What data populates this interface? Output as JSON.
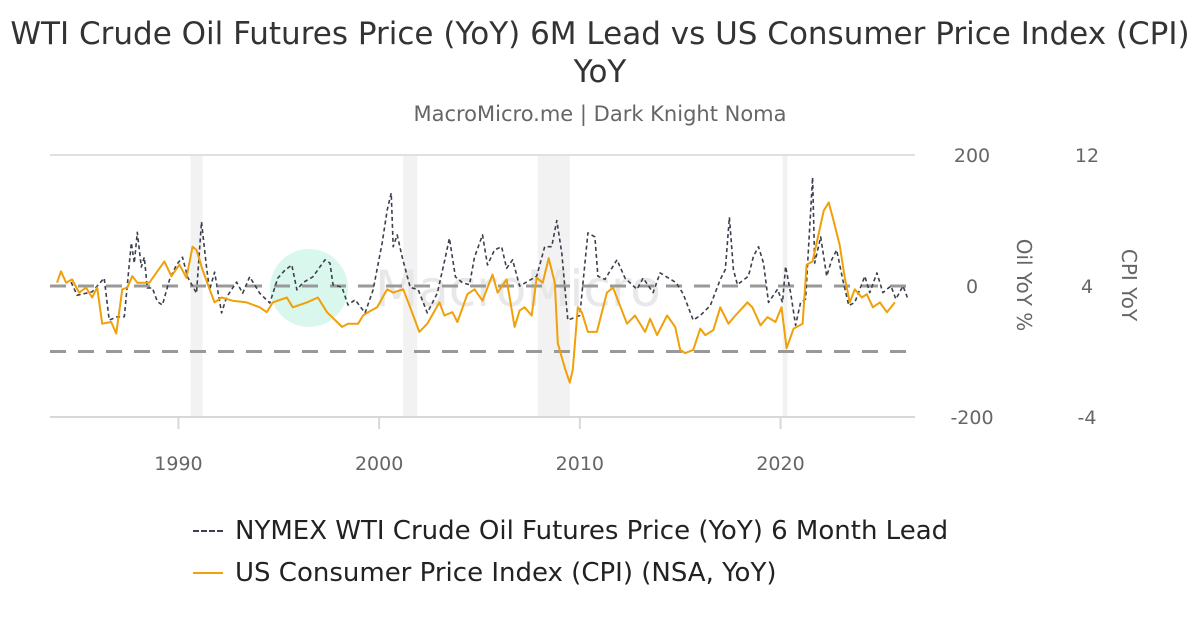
{
  "chart_data": {
    "type": "line",
    "title": "WTI Crude Oil Futures Price (YoY) 6M Lead vs US Consumer Price Index (CPI) YoY",
    "subtitle": "MacroMicro.me | Dark Knight Noma",
    "watermark": "MacroMicro",
    "xlim": [
      1983.6,
      2026.7
    ],
    "x_ticks": [
      "1990",
      "2000",
      "2010",
      "2020"
    ],
    "y_left": {
      "label": "Oil YoY %",
      "range": [
        -200,
        200
      ],
      "ticks": [
        "200",
        "0",
        "-200"
      ]
    },
    "y_right": {
      "label": "CPI YoY",
      "range": [
        -4,
        12
      ],
      "ticks": [
        "12",
        "4",
        "-4"
      ]
    },
    "reference_lines": [
      {
        "axis": "left",
        "value": 0
      },
      {
        "axis": "right",
        "value": 0
      }
    ],
    "recession_bands": [
      [
        1990.6,
        1991.2
      ],
      [
        2001.2,
        2001.9
      ],
      [
        2007.9,
        2009.5
      ],
      [
        2020.1,
        2020.35
      ]
    ],
    "legend_position": "bottom",
    "series": [
      {
        "name": "NYMEX WTI Crude Oil Futures Price (YoY) 6 Month Lead",
        "axis": "left",
        "color": "#3b3f4e",
        "style": "dashed",
        "points": [
          [
            1984.65,
            6
          ],
          [
            1984.95,
            -14
          ],
          [
            1985.7,
            -9
          ],
          [
            1986.3,
            12
          ],
          [
            1986.55,
            -52
          ],
          [
            1986.95,
            -47
          ],
          [
            1987.3,
            -47
          ],
          [
            1987.65,
            66
          ],
          [
            1987.8,
            35
          ],
          [
            1987.95,
            82
          ],
          [
            1988.15,
            29
          ],
          [
            1988.3,
            44
          ],
          [
            1988.45,
            -3
          ],
          [
            1988.7,
            -3
          ],
          [
            1988.95,
            -24
          ],
          [
            1989.2,
            -29
          ],
          [
            1989.55,
            9
          ],
          [
            1989.9,
            32
          ],
          [
            1990.2,
            44
          ],
          [
            1990.45,
            14
          ],
          [
            1990.9,
            -11
          ],
          [
            1991.15,
            98
          ],
          [
            1991.4,
            29
          ],
          [
            1991.55,
            -6
          ],
          [
            1991.8,
            21
          ],
          [
            1992.15,
            -41
          ],
          [
            1992.4,
            -17
          ],
          [
            1992.9,
            6
          ],
          [
            1993.2,
            -11
          ],
          [
            1993.55,
            14
          ],
          [
            1994.05,
            -11
          ],
          [
            1994.55,
            -26
          ],
          [
            1994.95,
            12
          ],
          [
            1995.3,
            24
          ],
          [
            1995.65,
            32
          ],
          [
            1995.9,
            -6
          ],
          [
            1996.2,
            5
          ],
          [
            1996.7,
            14
          ],
          [
            1997.3,
            40
          ],
          [
            1997.55,
            35
          ],
          [
            1997.7,
            2
          ],
          [
            1998.15,
            -2
          ],
          [
            1998.45,
            -29
          ],
          [
            1998.8,
            -21
          ],
          [
            1999.3,
            -41
          ],
          [
            1999.7,
            -6
          ],
          [
            2000.15,
            66
          ],
          [
            2000.4,
            116
          ],
          [
            2000.6,
            142
          ],
          [
            2000.7,
            60
          ],
          [
            2000.9,
            78
          ],
          [
            2001.15,
            44
          ],
          [
            2001.55,
            -2
          ],
          [
            2001.95,
            -6
          ],
          [
            2002.4,
            -41
          ],
          [
            2002.9,
            -11
          ],
          [
            2003.3,
            44
          ],
          [
            2003.5,
            73
          ],
          [
            2003.8,
            14
          ],
          [
            2004.15,
            5
          ],
          [
            2004.5,
            2
          ],
          [
            2004.75,
            44
          ],
          [
            2005.15,
            78
          ],
          [
            2005.4,
            32
          ],
          [
            2005.75,
            55
          ],
          [
            2006.1,
            60
          ],
          [
            2006.35,
            27
          ],
          [
            2006.65,
            40
          ],
          [
            2007.0,
            0
          ],
          [
            2007.85,
            15
          ],
          [
            2008.25,
            60
          ],
          [
            2008.6,
            60
          ],
          [
            2008.85,
            100
          ],
          [
            2009.1,
            50
          ],
          [
            2009.4,
            -52
          ],
          [
            2010.0,
            -45
          ],
          [
            2010.4,
            81
          ],
          [
            2010.75,
            75
          ],
          [
            2010.9,
            15
          ],
          [
            2011.25,
            10
          ],
          [
            2011.85,
            40
          ],
          [
            2012.25,
            12
          ],
          [
            2012.85,
            -5
          ],
          [
            2013.15,
            12
          ],
          [
            2013.65,
            -10
          ],
          [
            2014.0,
            20
          ],
          [
            2014.8,
            5
          ],
          [
            2015.15,
            -12
          ],
          [
            2015.65,
            -52
          ],
          [
            2016.0,
            -45
          ],
          [
            2016.5,
            -30
          ],
          [
            2017.0,
            10
          ],
          [
            2017.25,
            25
          ],
          [
            2017.45,
            105
          ],
          [
            2017.65,
            25
          ],
          [
            2017.85,
            2
          ],
          [
            2018.4,
            15
          ],
          [
            2018.65,
            45
          ],
          [
            2018.9,
            60
          ],
          [
            2019.15,
            35
          ],
          [
            2019.4,
            -25
          ],
          [
            2019.85,
            -5
          ],
          [
            2020.1,
            -25
          ],
          [
            2020.25,
            30
          ],
          [
            2020.5,
            -10
          ],
          [
            2020.75,
            -60
          ],
          [
            2021.0,
            -25
          ],
          [
            2021.25,
            -20
          ],
          [
            2021.4,
            60
          ],
          [
            2021.6,
            166
          ],
          [
            2021.7,
            35
          ],
          [
            2022.0,
            75
          ],
          [
            2022.3,
            15
          ],
          [
            2022.55,
            40
          ],
          [
            2022.8,
            55
          ],
          [
            2023.1,
            10
          ],
          [
            2023.4,
            -30
          ],
          [
            2023.7,
            -25
          ],
          [
            2024.2,
            15
          ],
          [
            2024.45,
            -10
          ],
          [
            2024.8,
            20
          ],
          [
            2025.1,
            -10
          ],
          [
            2025.5,
            0
          ],
          [
            2025.75,
            -20
          ],
          [
            2026.1,
            0
          ],
          [
            2026.35,
            -20
          ]
        ]
      },
      {
        "name": "US Consumer Price Index (CPI) (NSA, YoY)",
        "axis": "right",
        "color": "#f0a00a",
        "style": "solid",
        "points": [
          [
            1983.95,
            4.2
          ],
          [
            1984.15,
            4.9
          ],
          [
            1984.4,
            4.2
          ],
          [
            1984.7,
            4.4
          ],
          [
            1985.05,
            3.6
          ],
          [
            1985.4,
            3.9
          ],
          [
            1985.7,
            3.3
          ],
          [
            1985.95,
            3.9
          ],
          [
            1986.2,
            1.7
          ],
          [
            1986.65,
            1.8
          ],
          [
            1986.9,
            1.1
          ],
          [
            1987.2,
            3.8
          ],
          [
            1987.45,
            3.9
          ],
          [
            1987.7,
            4.6
          ],
          [
            1987.95,
            4.2
          ],
          [
            1988.55,
            4.2
          ],
          [
            1989.3,
            5.5
          ],
          [
            1989.65,
            4.6
          ],
          [
            1990.05,
            5.3
          ],
          [
            1990.4,
            4.5
          ],
          [
            1990.7,
            6.4
          ],
          [
            1990.9,
            6.2
          ],
          [
            1991.2,
            5.0
          ],
          [
            1991.55,
            3.8
          ],
          [
            1991.8,
            3.0
          ],
          [
            1992.15,
            3.3
          ],
          [
            1992.7,
            3.1
          ],
          [
            1993.4,
            3.0
          ],
          [
            1994.05,
            2.7
          ],
          [
            1994.4,
            2.4
          ],
          [
            1994.7,
            3.0
          ],
          [
            1995.4,
            3.3
          ],
          [
            1995.7,
            2.7
          ],
          [
            1996.4,
            3.0
          ],
          [
            1996.95,
            3.3
          ],
          [
            1997.4,
            2.4
          ],
          [
            1998.15,
            1.5
          ],
          [
            1998.45,
            1.7
          ],
          [
            1998.95,
            1.7
          ],
          [
            1999.2,
            2.2
          ],
          [
            1999.45,
            2.4
          ],
          [
            1999.9,
            2.7
          ],
          [
            2000.4,
            3.8
          ],
          [
            2000.7,
            3.6
          ],
          [
            2001.2,
            3.8
          ],
          [
            2001.55,
            2.7
          ],
          [
            2002.0,
            1.2
          ],
          [
            2002.4,
            1.7
          ],
          [
            2003.0,
            3.0
          ],
          [
            2003.25,
            2.2
          ],
          [
            2003.65,
            2.4
          ],
          [
            2003.9,
            1.8
          ],
          [
            2004.4,
            3.5
          ],
          [
            2004.75,
            3.8
          ],
          [
            2005.15,
            3.1
          ],
          [
            2005.65,
            4.7
          ],
          [
            2005.9,
            3.6
          ],
          [
            2006.35,
            4.4
          ],
          [
            2006.75,
            1.5
          ],
          [
            2007.0,
            2.5
          ],
          [
            2007.25,
            2.7
          ],
          [
            2007.6,
            2.2
          ],
          [
            2007.85,
            4.5
          ],
          [
            2008.15,
            4.2
          ],
          [
            2008.45,
            5.7
          ],
          [
            2008.75,
            4.2
          ],
          [
            2008.9,
            0.5
          ],
          [
            2009.25,
            -1.0
          ],
          [
            2009.5,
            -1.9
          ],
          [
            2009.65,
            -1.1
          ],
          [
            2009.9,
            2.7
          ],
          [
            2010.1,
            2.4
          ],
          [
            2010.4,
            1.2
          ],
          [
            2010.85,
            1.2
          ],
          [
            2011.35,
            3.6
          ],
          [
            2011.65,
            3.9
          ],
          [
            2012.35,
            1.7
          ],
          [
            2012.75,
            2.2
          ],
          [
            2013.25,
            1.2
          ],
          [
            2013.5,
            2.0
          ],
          [
            2013.85,
            1.0
          ],
          [
            2014.35,
            2.2
          ],
          [
            2014.75,
            1.5
          ],
          [
            2015.0,
            0.1
          ],
          [
            2015.25,
            -0.1
          ],
          [
            2015.65,
            0.1
          ],
          [
            2016.0,
            1.4
          ],
          [
            2016.25,
            1.0
          ],
          [
            2016.65,
            1.3
          ],
          [
            2017.0,
            2.7
          ],
          [
            2017.4,
            1.7
          ],
          [
            2017.75,
            2.2
          ],
          [
            2018.35,
            3.0
          ],
          [
            2018.6,
            2.7
          ],
          [
            2019.0,
            1.6
          ],
          [
            2019.35,
            2.1
          ],
          [
            2019.75,
            1.8
          ],
          [
            2020.05,
            2.7
          ],
          [
            2020.3,
            0.2
          ],
          [
            2020.65,
            1.4
          ],
          [
            2021.1,
            1.7
          ],
          [
            2021.3,
            5.3
          ],
          [
            2021.6,
            5.5
          ],
          [
            2021.9,
            7.2
          ],
          [
            2022.15,
            8.6
          ],
          [
            2022.4,
            9.1
          ],
          [
            2022.6,
            8.2
          ],
          [
            2022.95,
            6.5
          ],
          [
            2023.2,
            4.5
          ],
          [
            2023.45,
            3.0
          ],
          [
            2023.7,
            3.8
          ],
          [
            2024.05,
            3.3
          ],
          [
            2024.3,
            3.5
          ],
          [
            2024.6,
            2.7
          ],
          [
            2024.95,
            3.0
          ],
          [
            2025.3,
            2.4
          ],
          [
            2025.7,
            3.0
          ]
        ]
      }
    ]
  }
}
